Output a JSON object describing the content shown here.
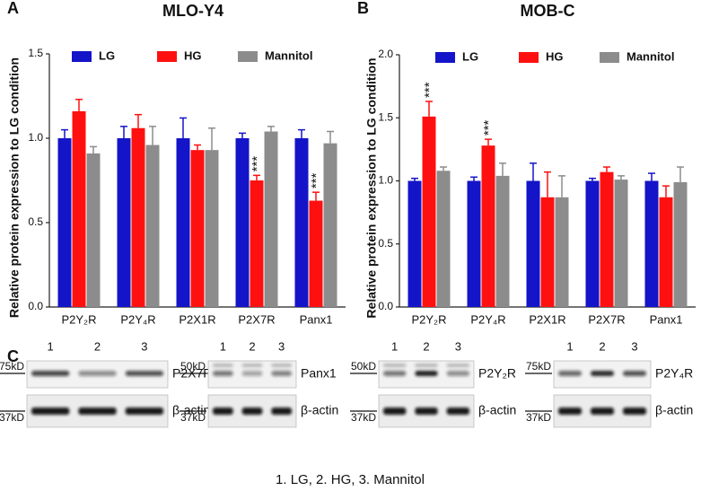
{
  "chart_data": [
    {
      "type": "bar",
      "panel_label": "A",
      "title": "MLO-Y4",
      "y_label": "Relative protein expression to LG condition",
      "categories": [
        "P2Y₂R",
        "P2Y₄R",
        "P2X1R",
        "P2X7R",
        "Panx1"
      ],
      "series": [
        {
          "name": "LG",
          "color": "#1414c8",
          "values": [
            1,
            1,
            1,
            1,
            1
          ],
          "errors": [
            0.05,
            0.07,
            0.12,
            0.03,
            0.05
          ]
        },
        {
          "name": "HG",
          "color": "#ff1010",
          "values": [
            1.16,
            1.06,
            0.93,
            0.75,
            0.63
          ],
          "errors": [
            0.07,
            0.08,
            0.03,
            0.03,
            0.05
          ],
          "labels": [
            null,
            null,
            null,
            "***",
            "***"
          ]
        },
        {
          "name": "Mannitol",
          "color": "#8c8c8c",
          "values": [
            0.91,
            0.96,
            0.93,
            1.04,
            0.97
          ],
          "errors": [
            0.04,
            0.11,
            0.13,
            0.03,
            0.07
          ]
        }
      ],
      "ylim": [
        0,
        1.5
      ],
      "yticks": [
        {
          "value": 0,
          "label": "0.0"
        },
        0.5,
        {
          "value": 1,
          "label": "1.0"
        },
        1.5
      ],
      "legend": "top"
    },
    {
      "type": "bar",
      "panel_label": "B",
      "title": "MOB-C",
      "y_label": "Relative protein expression to LG condition",
      "categories": [
        "P2Y₂R",
        "P2Y₄R",
        "P2X1R",
        "P2X7R",
        "Panx1"
      ],
      "series": [
        {
          "name": "LG",
          "color": "#1414c8",
          "values": [
            1,
            1,
            1,
            1,
            1
          ],
          "errors": [
            0.02,
            0.03,
            0.14,
            0.02,
            0.06
          ]
        },
        {
          "name": "HG",
          "color": "#ff1010",
          "values": [
            1.51,
            1.28,
            0.87,
            1.07,
            0.87
          ],
          "errors": [
            0.12,
            0.05,
            0.2,
            0.04,
            0.09
          ],
          "labels": [
            "***",
            "***",
            null,
            null,
            null
          ]
        },
        {
          "name": "Mannitol",
          "color": "#8c8c8c",
          "values": [
            1.08,
            1.04,
            0.87,
            1.01,
            0.99
          ],
          "errors": [
            0.03,
            0.1,
            0.17,
            0.03,
            0.12
          ]
        }
      ],
      "ylim": [
        0,
        2
      ],
      "yticks": [
        {
          "value": 0,
          "label": "0.0"
        },
        0.5,
        {
          "value": 1,
          "label": "1.0"
        },
        1.5,
        {
          "value": 2,
          "label": "2.0"
        }
      ],
      "legend": "top"
    }
  ],
  "blots": {
    "panel_label": "C",
    "panels": [
      {
        "lanes": [
          "1",
          "2",
          "3"
        ],
        "marker_top": "75kD",
        "protein": "P2X7R",
        "marker_bottom": "37kD",
        "loading": "β-actin"
      },
      {
        "lanes": [
          "1",
          "2",
          "3"
        ],
        "marker_top": "50kD",
        "protein": "Panx1",
        "marker_bottom": "37kD",
        "loading": "β-actin"
      },
      {
        "lanes": [
          "1",
          "2",
          "3"
        ],
        "marker_top": "50kD",
        "protein": "P2Y₂R",
        "marker_bottom": "37kD",
        "loading": "β-actin"
      },
      {
        "lanes": [
          "1",
          "2",
          "3"
        ],
        "marker_top": "75kD",
        "protein": "P2Y₄R",
        "marker_bottom": "37kD",
        "loading": "β-actin"
      }
    ],
    "lane_legend": "1. LG,  2. HG,   3. Mannitol"
  }
}
